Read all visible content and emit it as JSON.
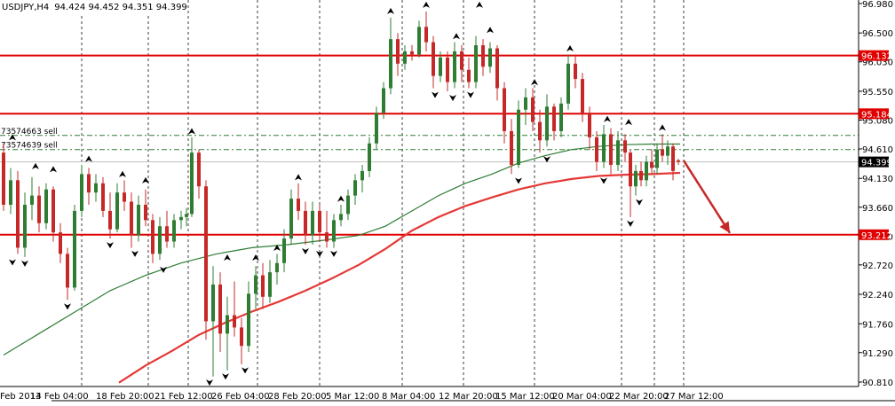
{
  "header": {
    "symbol": "USDJPY,H4",
    "quotes": "94.424 94.452 94.351 94.399"
  },
  "chart_data": {
    "type": "candlestick",
    "symbol": "USDJPY",
    "timeframe": "H4",
    "ohlc_last": {
      "open": 94.424,
      "high": 94.452,
      "low": 94.351,
      "close": 94.399
    },
    "ylim": [
      90.8,
      96.98
    ],
    "y_ticks": [
      96.98,
      96.5,
      96.03,
      95.55,
      95.08,
      94.61,
      94.13,
      93.66,
      93.19,
      92.72,
      92.24,
      91.76,
      91.29,
      90.81
    ],
    "y_tick_labels": [
      "96.980",
      "96.500",
      "96.030",
      "95.550",
      "95.080",
      "94.610",
      "94.130",
      "93.660",
      "93.190",
      "92.720",
      "92.240",
      "91.760",
      "91.290",
      "90.810"
    ],
    "x_tick_labels": [
      "Feb 2013",
      "14 Feb 04:00",
      "18 Feb 20:00",
      "21 Feb 12:00",
      "26 Feb 04:00",
      "28 Feb 20:00",
      "5 Mar 12:00",
      "8 Mar 04:00",
      "12 Mar 20:00",
      "15 Mar 12:00",
      "20 Mar 04:00",
      "22 Mar 20:00",
      "27 Mar 12:00"
    ],
    "horizontal_levels": [
      {
        "price": 96.132,
        "label": "96.132",
        "color": "#e00000"
      },
      {
        "price": 95.184,
        "label": "95.184",
        "color": "#e00000"
      },
      {
        "price": 93.212,
        "label": "93.212",
        "color": "#e00000"
      }
    ],
    "order_lines": [
      {
        "price": 94.83,
        "label": "73574663 sell",
        "color": "#2e7d32"
      },
      {
        "price": 94.6,
        "label": "73574639 sell",
        "color": "#2e7d32"
      }
    ],
    "current_price": {
      "price": 94.399,
      "label": "94.399"
    },
    "moving_averages": [
      {
        "color": "#2e7d32",
        "points": [
          [
            0,
            91.25
          ],
          [
            40,
            91.6
          ],
          [
            80,
            91.95
          ],
          [
            120,
            92.3
          ],
          [
            160,
            92.55
          ],
          [
            200,
            92.75
          ],
          [
            240,
            92.9
          ],
          [
            280,
            93.0
          ],
          [
            320,
            93.05
          ],
          [
            360,
            93.12
          ],
          [
            400,
            93.2
          ],
          [
            430,
            93.35
          ],
          [
            460,
            93.6
          ],
          [
            490,
            93.85
          ],
          [
            520,
            94.05
          ],
          [
            550,
            94.2
          ],
          [
            580,
            94.38
          ],
          [
            610,
            94.5
          ],
          [
            640,
            94.6
          ],
          [
            670,
            94.65
          ],
          [
            700,
            94.68
          ],
          [
            730,
            94.69
          ],
          [
            762,
            94.69
          ]
        ]
      },
      {
        "color": "#e53935",
        "points": [
          [
            130,
            90.8
          ],
          [
            160,
            91.08
          ],
          [
            190,
            91.32
          ],
          [
            220,
            91.58
          ],
          [
            250,
            91.78
          ],
          [
            280,
            91.96
          ],
          [
            310,
            92.12
          ],
          [
            340,
            92.3
          ],
          [
            370,
            92.5
          ],
          [
            400,
            92.72
          ],
          [
            430,
            92.98
          ],
          [
            460,
            93.28
          ],
          [
            490,
            93.5
          ],
          [
            520,
            93.68
          ],
          [
            550,
            93.82
          ],
          [
            580,
            93.95
          ],
          [
            610,
            94.05
          ],
          [
            640,
            94.12
          ],
          [
            670,
            94.17
          ],
          [
            700,
            94.19
          ],
          [
            730,
            94.2
          ],
          [
            762,
            94.22
          ]
        ]
      }
    ],
    "candles": [
      [
        0,
        94.55,
        94.7,
        93.6,
        93.7
      ],
      [
        8,
        93.7,
        94.3,
        93.55,
        94.1
      ],
      [
        16,
        94.1,
        94.25,
        92.9,
        93.0
      ],
      [
        24,
        93.0,
        93.9,
        92.85,
        93.7
      ],
      [
        32,
        93.7,
        94.15,
        93.45,
        93.85
      ],
      [
        40,
        93.85,
        94.0,
        93.25,
        93.4
      ],
      [
        48,
        93.4,
        94.05,
        93.3,
        93.95
      ],
      [
        56,
        93.95,
        94.0,
        93.1,
        93.25
      ],
      [
        64,
        93.25,
        93.4,
        92.75,
        92.9
      ],
      [
        72,
        92.9,
        93.0,
        92.15,
        92.35
      ],
      [
        80,
        92.35,
        93.7,
        92.3,
        93.6
      ],
      [
        88,
        93.6,
        94.35,
        93.5,
        94.2
      ],
      [
        96,
        94.2,
        94.3,
        93.7,
        93.9
      ],
      [
        104,
        93.9,
        94.2,
        93.75,
        94.05
      ],
      [
        112,
        94.05,
        94.15,
        93.5,
        93.6
      ],
      [
        120,
        93.6,
        93.9,
        93.15,
        93.3
      ],
      [
        128,
        93.3,
        94.05,
        93.25,
        93.9
      ],
      [
        136,
        93.9,
        94.1,
        93.6,
        93.75
      ],
      [
        144,
        93.75,
        93.9,
        93.0,
        93.2
      ],
      [
        152,
        93.2,
        93.85,
        93.1,
        93.7
      ],
      [
        160,
        93.7,
        93.95,
        93.35,
        93.45
      ],
      [
        168,
        93.45,
        93.55,
        92.75,
        92.9
      ],
      [
        176,
        92.9,
        93.5,
        92.8,
        93.35
      ],
      [
        184,
        93.35,
        93.6,
        93.0,
        93.1
      ],
      [
        192,
        93.1,
        93.55,
        93.0,
        93.45
      ],
      [
        200,
        93.45,
        93.6,
        93.3,
        93.5
      ],
      [
        206,
        93.5,
        93.65,
        93.35,
        93.55
      ],
      [
        212,
        93.55,
        94.8,
        93.5,
        94.55
      ],
      [
        220,
        94.55,
        94.6,
        93.8,
        94.0
      ],
      [
        228,
        94.0,
        94.1,
        91.5,
        91.8
      ],
      [
        236,
        91.8,
        92.7,
        90.9,
        92.4
      ],
      [
        244,
        92.4,
        92.6,
        91.3,
        91.6
      ],
      [
        252,
        91.6,
        92.2,
        91.0,
        91.9
      ],
      [
        260,
        91.9,
        92.45,
        91.55,
        91.7
      ],
      [
        268,
        91.7,
        91.85,
        91.1,
        91.4
      ],
      [
        276,
        91.4,
        92.45,
        91.3,
        92.25
      ],
      [
        284,
        92.25,
        92.7,
        92.0,
        92.55
      ],
      [
        292,
        92.55,
        92.75,
        92.0,
        92.2
      ],
      [
        300,
        92.2,
        92.8,
        92.1,
        92.6
      ],
      [
        308,
        92.6,
        92.9,
        92.4,
        92.75
      ],
      [
        316,
        92.75,
        93.3,
        92.6,
        93.15
      ],
      [
        324,
        93.15,
        93.95,
        93.05,
        93.8
      ],
      [
        332,
        93.8,
        94.05,
        93.45,
        93.6
      ],
      [
        340,
        93.6,
        93.75,
        93.05,
        93.2
      ],
      [
        348,
        93.2,
        93.75,
        93.05,
        93.6
      ],
      [
        356,
        93.6,
        93.7,
        93.1,
        93.25
      ],
      [
        364,
        93.25,
        93.6,
        93.0,
        93.1
      ],
      [
        372,
        93.1,
        93.55,
        93.0,
        93.45
      ],
      [
        380,
        93.45,
        93.7,
        93.35,
        93.55
      ],
      [
        388,
        93.55,
        93.95,
        93.45,
        93.85
      ],
      [
        396,
        93.85,
        94.2,
        93.7,
        94.1
      ],
      [
        404,
        94.1,
        94.35,
        93.9,
        94.25
      ],
      [
        412,
        94.25,
        94.8,
        94.15,
        94.7
      ],
      [
        420,
        94.7,
        95.3,
        94.6,
        95.2
      ],
      [
        428,
        95.2,
        95.7,
        95.1,
        95.6
      ],
      [
        436,
        95.6,
        96.75,
        95.5,
        96.4
      ],
      [
        444,
        96.4,
        96.5,
        95.8,
        96.0
      ],
      [
        452,
        96.0,
        96.3,
        95.9,
        96.2
      ],
      [
        460,
        96.2,
        96.3,
        96.05,
        96.15
      ],
      [
        468,
        96.15,
        96.7,
        96.1,
        96.6
      ],
      [
        476,
        96.6,
        96.85,
        96.2,
        96.35
      ],
      [
        484,
        96.35,
        96.45,
        95.6,
        95.8
      ],
      [
        492,
        95.8,
        96.2,
        95.7,
        96.1
      ],
      [
        500,
        96.1,
        96.2,
        95.55,
        95.7
      ],
      [
        508,
        95.7,
        96.35,
        95.6,
        96.2
      ],
      [
        516,
        96.2,
        96.3,
        95.7,
        95.9
      ],
      [
        524,
        95.9,
        96.1,
        95.6,
        95.7
      ],
      [
        532,
        95.7,
        96.45,
        95.6,
        96.3
      ],
      [
        540,
        96.3,
        96.4,
        95.8,
        95.95
      ],
      [
        548,
        95.95,
        96.35,
        95.85,
        96.25
      ],
      [
        556,
        96.25,
        96.3,
        95.4,
        95.6
      ],
      [
        564,
        95.6,
        95.7,
        94.7,
        94.9
      ],
      [
        572,
        94.9,
        95.1,
        94.2,
        94.35
      ],
      [
        580,
        94.35,
        95.4,
        94.3,
        95.25
      ],
      [
        588,
        95.25,
        95.6,
        95.0,
        95.45
      ],
      [
        596,
        95.45,
        95.6,
        94.9,
        95.05
      ],
      [
        604,
        95.05,
        95.25,
        94.55,
        94.75
      ],
      [
        612,
        94.75,
        95.5,
        94.65,
        95.3
      ],
      [
        620,
        95.3,
        95.35,
        94.75,
        94.9
      ],
      [
        628,
        94.9,
        95.45,
        94.8,
        95.35
      ],
      [
        636,
        95.35,
        96.15,
        95.25,
        96.0
      ],
      [
        644,
        96.0,
        96.15,
        95.6,
        95.75
      ],
      [
        652,
        95.75,
        95.85,
        95.05,
        95.2
      ],
      [
        660,
        95.2,
        95.3,
        94.6,
        94.8
      ],
      [
        668,
        94.8,
        94.9,
        94.25,
        94.4
      ],
      [
        676,
        94.4,
        95.0,
        94.3,
        94.85
      ],
      [
        684,
        94.85,
        94.95,
        94.2,
        94.35
      ],
      [
        692,
        94.35,
        94.9,
        94.25,
        94.75
      ],
      [
        700,
        94.75,
        94.85,
        94.4,
        94.55
      ],
      [
        706,
        94.55,
        94.6,
        93.5,
        94.0
      ],
      [
        712,
        94.0,
        94.35,
        93.85,
        94.25
      ],
      [
        718,
        94.25,
        94.4,
        94.0,
        94.1
      ],
      [
        724,
        94.1,
        94.5,
        94.0,
        94.4
      ],
      [
        730,
        94.4,
        94.6,
        94.2,
        94.3
      ],
      [
        736,
        94.3,
        94.7,
        94.2,
        94.6
      ],
      [
        742,
        94.6,
        94.85,
        94.4,
        94.5
      ],
      [
        748,
        94.5,
        94.75,
        94.35,
        94.65
      ],
      [
        754,
        94.65,
        94.7,
        94.1,
        94.25
      ],
      [
        760,
        94.424,
        94.452,
        94.351,
        94.399
      ]
    ],
    "fractals_up": [
      [
        10,
        94.72
      ],
      [
        36,
        94.25
      ],
      [
        56,
        94.2
      ],
      [
        96,
        94.37
      ],
      [
        134,
        94.12
      ],
      [
        160,
        94.02
      ],
      [
        212,
        94.82
      ],
      [
        252,
        92.76
      ],
      [
        284,
        92.76
      ],
      [
        308,
        92.92
      ],
      [
        332,
        94.07
      ],
      [
        380,
        93.72
      ],
      [
        436,
        96.78
      ],
      [
        476,
        96.88
      ],
      [
        510,
        96.37
      ],
      [
        536,
        96.88
      ],
      [
        548,
        96.47
      ],
      [
        598,
        95.62
      ],
      [
        638,
        96.17
      ],
      [
        680,
        95.02
      ],
      [
        704,
        94.97
      ],
      [
        742,
        94.88
      ]
    ],
    "fractals_down": [
      [
        10,
        92.84
      ],
      [
        24,
        92.82
      ],
      [
        72,
        92.12
      ],
      [
        120,
        93.12
      ],
      [
        148,
        92.98
      ],
      [
        180,
        92.72
      ],
      [
        232,
        90.88
      ],
      [
        250,
        90.98
      ],
      [
        272,
        91.08
      ],
      [
        340,
        93.02
      ],
      [
        356,
        92.98
      ],
      [
        372,
        92.98
      ],
      [
        486,
        95.57
      ],
      [
        506,
        95.52
      ],
      [
        526,
        95.57
      ],
      [
        580,
        94.17
      ],
      [
        612,
        94.52
      ],
      [
        676,
        94.17
      ],
      [
        706,
        93.47
      ],
      [
        716,
        93.82
      ]
    ],
    "forecast_arrow": {
      "from": [
        766,
        94.42
      ],
      "to": [
        818,
        93.24
      ],
      "color": "#c62828"
    }
  }
}
